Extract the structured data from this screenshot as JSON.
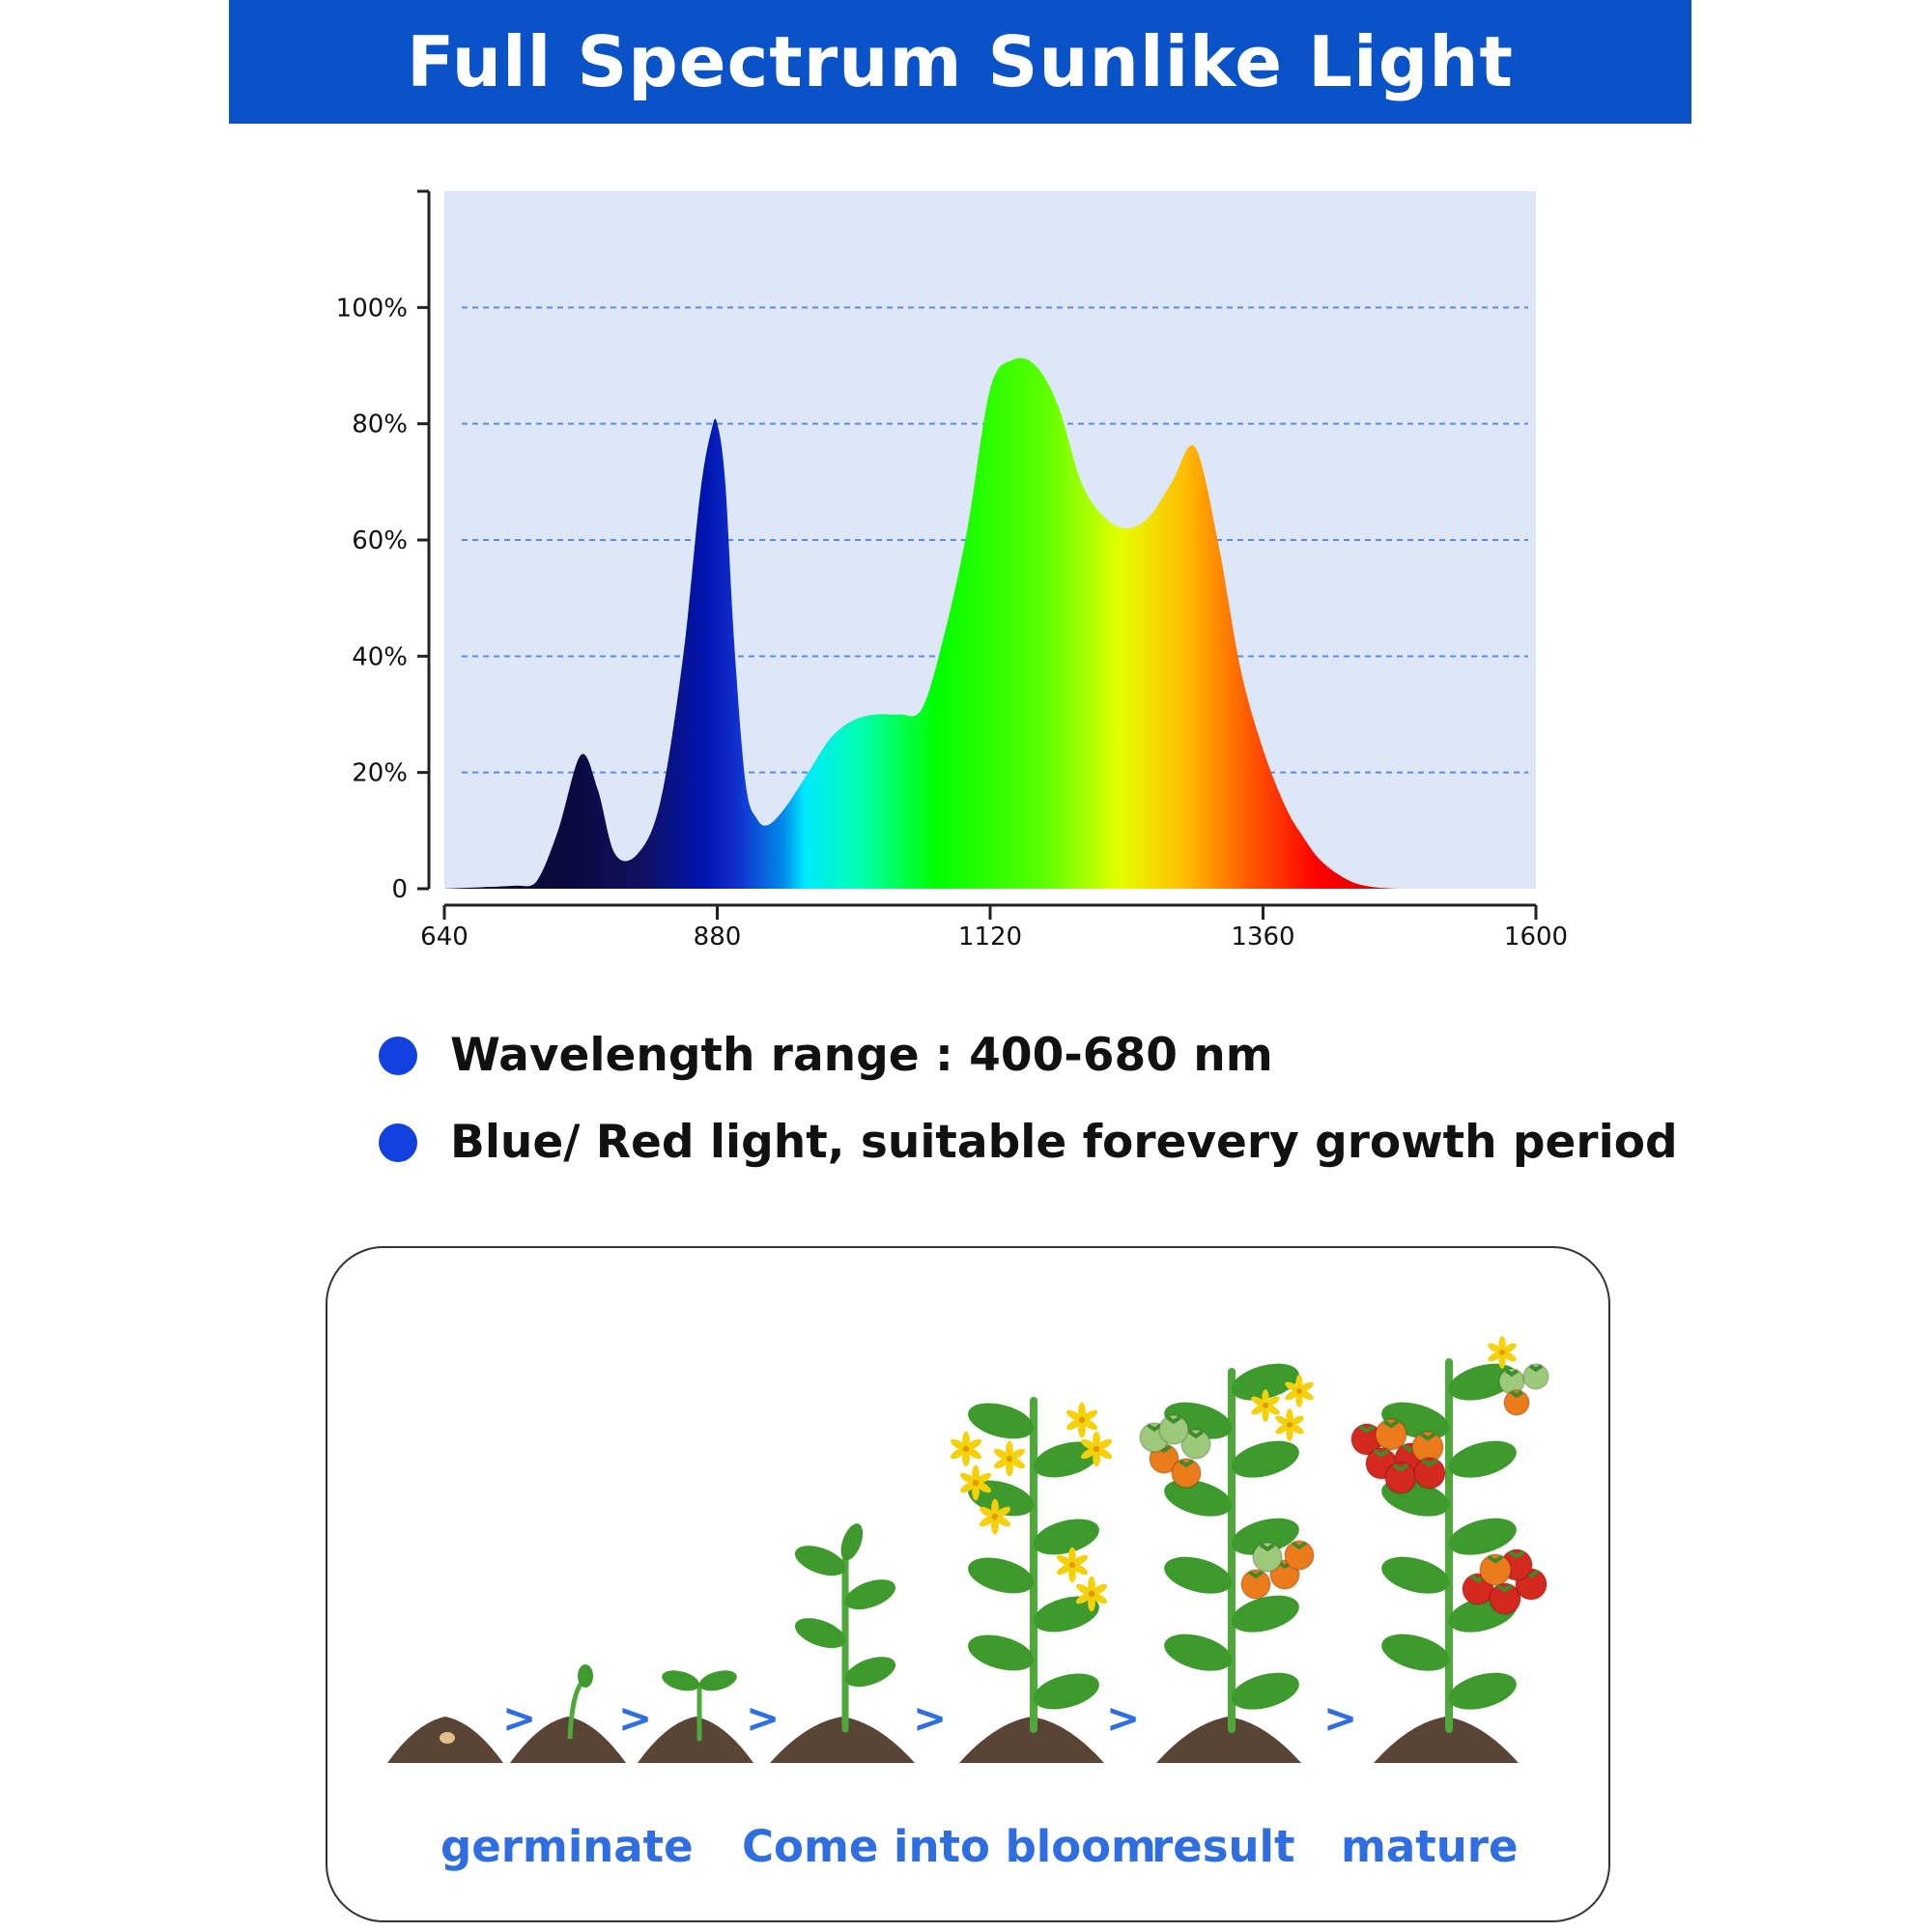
{
  "header": {
    "title": "Full Spectrum Sunlike Light"
  },
  "chart_data": {
    "type": "area",
    "title": "",
    "xlabel": "",
    "ylabel": "",
    "x_ticks": [
      "640",
      "880",
      "1120",
      "1360",
      "1600"
    ],
    "y_ticks": [
      "0",
      "20%",
      "40%",
      "60%",
      "80%",
      "100%"
    ],
    "xlim": [
      640,
      1600
    ],
    "ylim": [
      0,
      120
    ],
    "grid": "dashed horizontal lines at 20% steps",
    "fill": "full visible spectrum gradient (violet to deep red)",
    "series": [
      {
        "x": [
          640,
          700,
          720,
          740,
          760,
          775,
          790,
          810,
          830,
          850,
          865,
          875,
          880,
          887,
          895,
          905,
          915,
          925,
          940,
          960,
          980,
          1000,
          1020,
          1040,
          1060,
          1080,
          1100,
          1120,
          1140,
          1160,
          1180,
          1200,
          1220,
          1240,
          1260,
          1280,
          1300,
          1320,
          1340,
          1360,
          1380,
          1395,
          1410,
          1430,
          1450,
          1480,
          1520,
          1560,
          1600
        ],
        "y": [
          0,
          0.5,
          1,
          10,
          23,
          17,
          6,
          6,
          15,
          40,
          68,
          79,
          80,
          70,
          42,
          18,
          12,
          11,
          14,
          20,
          26,
          29,
          30,
          30,
          31,
          44,
          62,
          86,
          91,
          90,
          83,
          70,
          64,
          62,
          64,
          70,
          76,
          60,
          38,
          24,
          14,
          9,
          5,
          2,
          0.5,
          0,
          0,
          0,
          0
        ]
      }
    ]
  },
  "bullets": [
    "Wavelength range : 400-680 nm",
    "Blue/ Red light, suitable forevery growth period"
  ],
  "growth": {
    "arrow_glyph": ">",
    "stages": [
      "germinate",
      "Come into bloom",
      "result",
      "mature"
    ],
    "colors": {
      "leaf": "#3f9a2e",
      "soil": "#5a4436",
      "flower": "#f5d10b",
      "tomato_red": "#d3291f",
      "tomato_orange": "#ec7b1b",
      "tomato_green": "#9cc97a",
      "arrow": "#2f6ee0"
    }
  }
}
